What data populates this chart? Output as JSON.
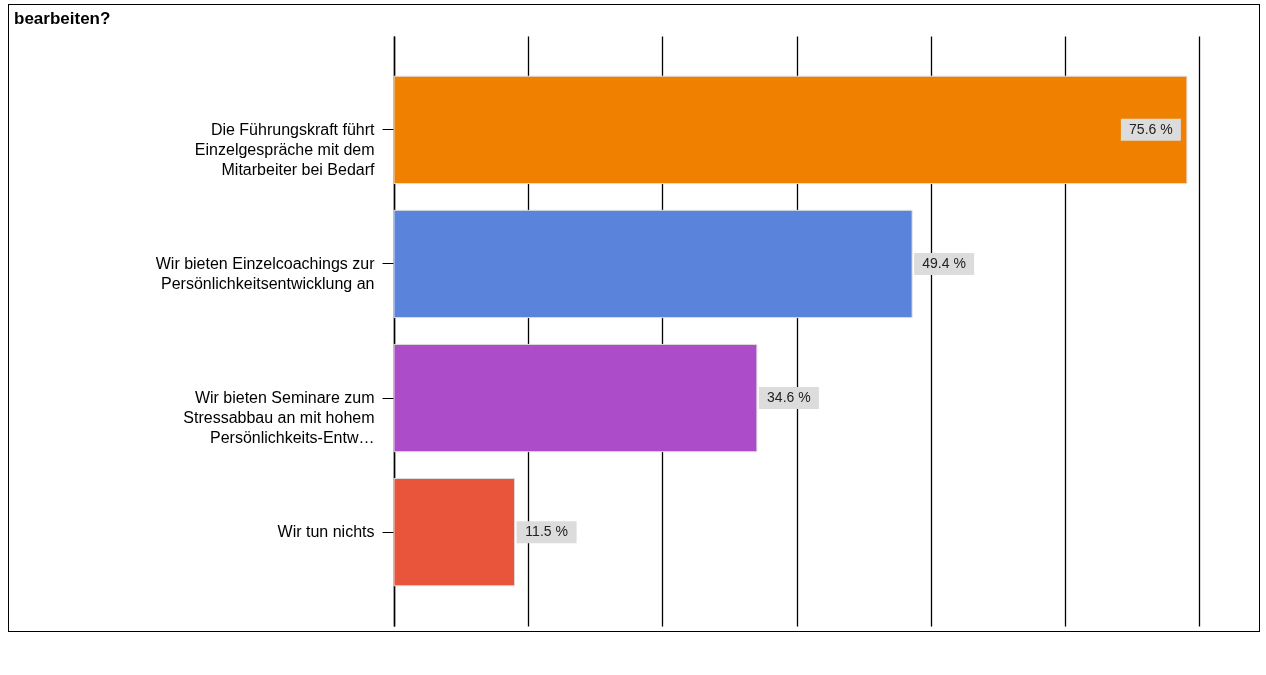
{
  "chart_data": {
    "type": "bar",
    "orientation": "horizontal",
    "title": "bearbeiten?",
    "categories": [
      "Die Führungskraft führt Einzelgespräche mit dem Mitarbeiter bei Bedarf",
      "Wir bieten Einzelcoachings zur Persönlichkeitsentwicklung an",
      "Wir bieten Seminare zum Stressabbau an mit hohem Persönlichkeits-Entw…",
      "Wir tun nichts"
    ],
    "values": [
      75.6,
      49.4,
      34.6,
      11.5
    ],
    "value_labels": [
      "75.6 %",
      "49.4 %",
      "34.6 %",
      "11.5 %"
    ],
    "colors": [
      "#f08000",
      "#5a84dc",
      "#ac4cc8",
      "#e8553a"
    ],
    "xlim": [
      0,
      82
    ],
    "xticks": [
      {
        "value": 0,
        "label": null
      },
      {
        "value": 12.8,
        "label": null
      },
      {
        "value": 25.6,
        "label": null
      },
      {
        "value": 38.4,
        "label": null
      },
      {
        "value": 51.2,
        "label": null
      },
      {
        "value": 64,
        "label": null
      },
      {
        "value": 76.8,
        "label": null
      }
    ],
    "grid": "x",
    "tick_labels": "y"
  }
}
